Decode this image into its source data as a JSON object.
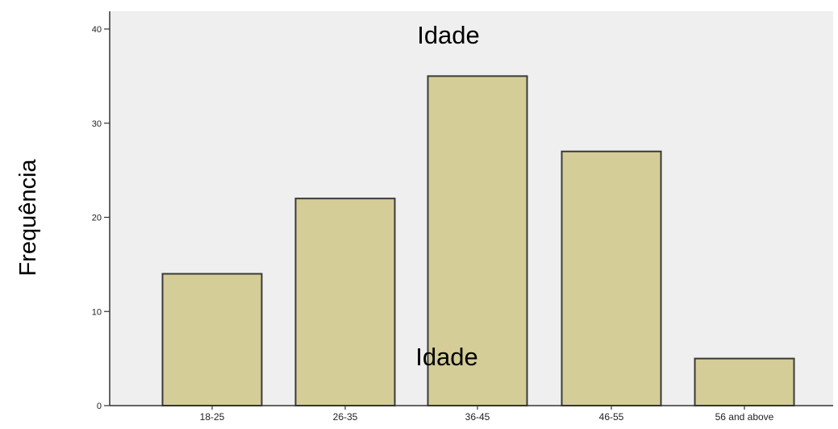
{
  "chart_data": {
    "type": "bar",
    "title": "Idade",
    "overlay_label": "Idade",
    "xlabel": "",
    "ylabel": "Frequência",
    "categories": [
      "18-25",
      "26-35",
      "36-45",
      "46-55",
      "56 and above"
    ],
    "values": [
      14,
      22,
      35,
      27,
      5
    ],
    "ylim": [
      0,
      40
    ],
    "yticks": [
      0,
      10,
      20,
      30,
      40
    ],
    "grid": false,
    "legend": "none",
    "colors": {
      "plot_background": "#efefef",
      "bar_fill": "#d4cd97",
      "bar_stroke": "#3a3a3a",
      "axis": "#333333",
      "text": "#000000"
    }
  }
}
